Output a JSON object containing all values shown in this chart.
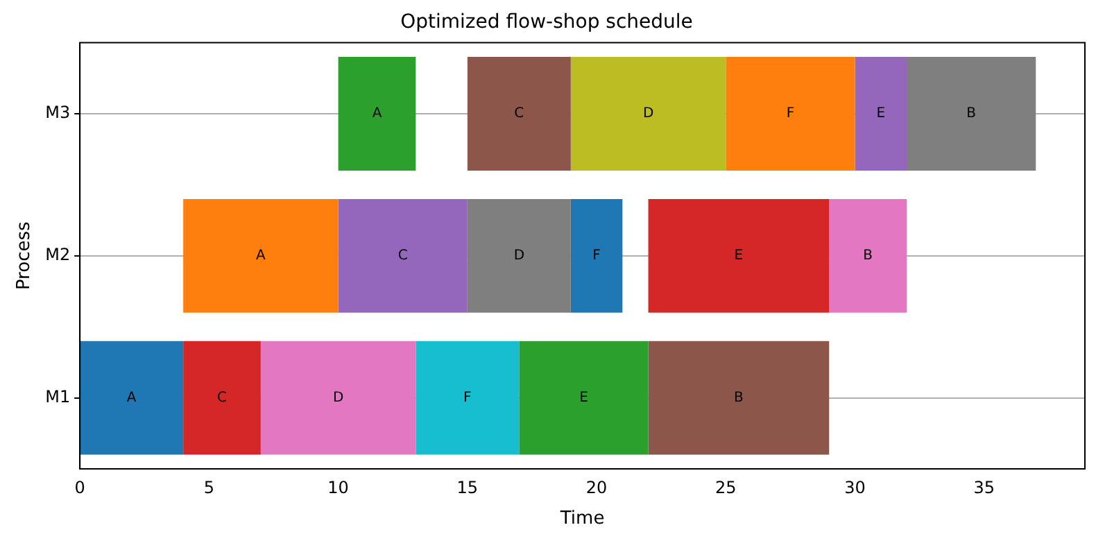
{
  "chart_data": {
    "type": "bar",
    "orientation": "horizontal",
    "title": "Optimized flow-shop schedule",
    "xlabel": "Time",
    "ylabel": "Process",
    "categories": [
      "M3",
      "M2",
      "M1"
    ],
    "series": [
      {
        "values": [
          3,
          6,
          4
        ],
        "base": [
          10,
          4,
          0
        ],
        "colors": [
          "#2ca02c",
          "#ff7f0e",
          "#1f77b4"
        ],
        "value_labels": [
          "A",
          "A",
          "A"
        ]
      },
      {
        "values": [
          4,
          5,
          3
        ],
        "base": [
          15,
          10,
          4
        ],
        "colors": [
          "#8c564b",
          "#9467bd",
          "#d62728"
        ],
        "value_labels": [
          "C",
          "C",
          "C"
        ]
      },
      {
        "values": [
          6,
          4,
          6
        ],
        "base": [
          19,
          15,
          7
        ],
        "colors": [
          "#bcbd22",
          "#7f7f7f",
          "#e377c2"
        ],
        "value_labels": [
          "D",
          "D",
          "D"
        ]
      },
      {
        "values": [
          5,
          2,
          4
        ],
        "base": [
          25,
          19,
          13
        ],
        "colors": [
          "#ff7f0e",
          "#1f77b4",
          "#17becf"
        ],
        "value_labels": [
          "F",
          "F",
          "F"
        ]
      },
      {
        "values": [
          2,
          7,
          5
        ],
        "base": [
          30,
          22,
          17
        ],
        "colors": [
          "#9467bd",
          "#d62728",
          "#2ca02c"
        ],
        "value_labels": [
          "E",
          "E",
          "E"
        ]
      },
      {
        "values": [
          5,
          3,
          7
        ],
        "base": [
          32,
          29,
          22
        ],
        "colors": [
          "#7f7f7f",
          "#e377c2",
          "#8c564b"
        ],
        "value_labels": [
          "B",
          "B",
          "B"
        ]
      }
    ],
    "xlim": [
      0,
      38.9
    ],
    "xticks": [
      0,
      5,
      10,
      15,
      20,
      25,
      30,
      35
    ],
    "grid": "y",
    "legend": false
  }
}
